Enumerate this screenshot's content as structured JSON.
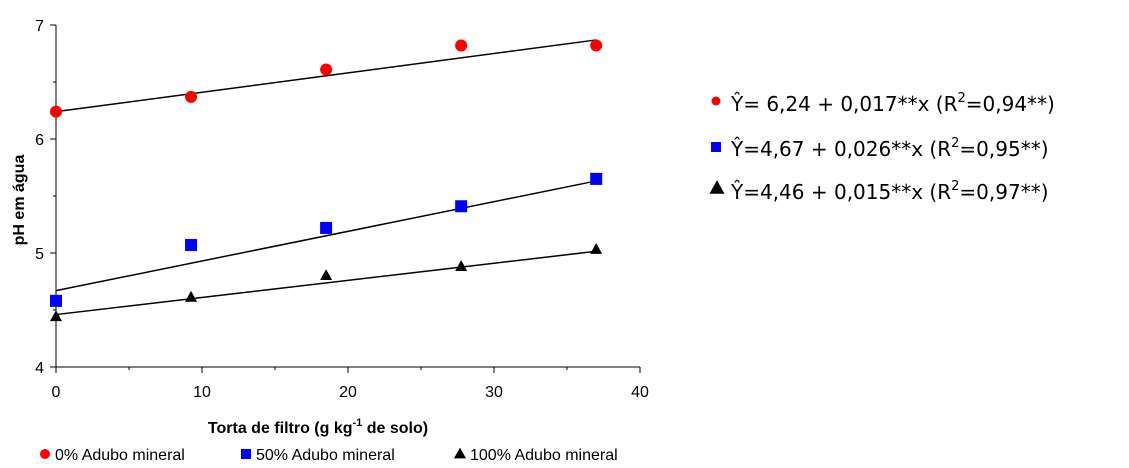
{
  "chart_data": {
    "type": "scatter",
    "xlabel": {
      "main": "Torta de filtro (g kg",
      "sup": "-1",
      "rest": " de solo)"
    },
    "ylabel": "pH em água",
    "xlim": [
      0,
      40
    ],
    "ylim": [
      4,
      7
    ],
    "xticks": [
      0,
      10,
      20,
      30,
      40
    ],
    "yticks": [
      4,
      5,
      6,
      7
    ],
    "grid": false,
    "legend_position": "bottom",
    "x": [
      0,
      9.25,
      18.5,
      27.75,
      37
    ],
    "series": [
      {
        "name": "0% Adubo mineral",
        "marker": "circle",
        "color": "#ff0000",
        "values": [
          6.24,
          6.37,
          6.61,
          6.82,
          6.82
        ],
        "fit": {
          "intercept": 6.24,
          "slope": 0.017
        },
        "equation": {
          "a": "Ŷ= 6,24 + 0,017**x (R",
          "b": "2",
          "c": "=0,94**)"
        }
      },
      {
        "name": "50% Adubo mineral",
        "marker": "square",
        "color": "#0000ff",
        "values": [
          4.58,
          5.07,
          5.22,
          5.41,
          5.65
        ],
        "fit": {
          "intercept": 4.67,
          "slope": 0.026
        },
        "equation": {
          "a": "Ŷ=4,67 + 0,026**x (R",
          "b": "2",
          "c": "=0,95**)"
        }
      },
      {
        "name": "100% Adubo mineral",
        "marker": "triangle",
        "color": "#000000",
        "values": [
          4.45,
          4.62,
          4.81,
          4.89,
          5.04
        ],
        "fit": {
          "intercept": 4.46,
          "slope": 0.015
        },
        "equation": {
          "a": "Ŷ=4,46 + 0,015**x (R",
          "b": "2",
          "c": "=0,97**)"
        }
      }
    ]
  }
}
